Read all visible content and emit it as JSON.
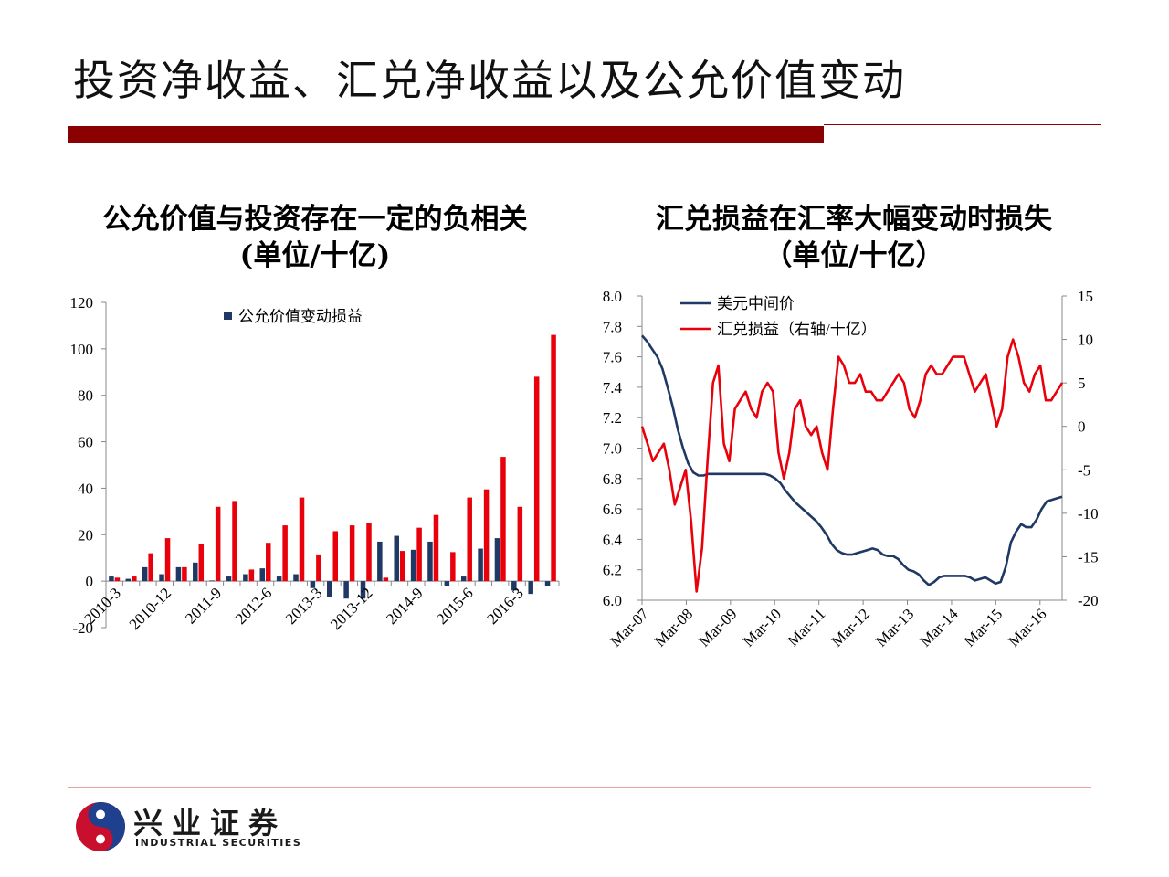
{
  "title": "投资净收益、汇兑净收益以及公允价值变动",
  "left_subtitle": {
    "line1": "公允价值与投资存在一定的负相关",
    "line2": "(单位/十亿)"
  },
  "right_subtitle": {
    "line1": "汇兑损益在汇率大幅变动时损失",
    "line2": "（单位/十亿）"
  },
  "colors": {
    "accent": "#8b0000",
    "navy": "#1f3864",
    "red": "#e8000b"
  },
  "logo": {
    "cn": "兴业证券",
    "en": "INDUSTRIAL SECURITIES"
  },
  "chart_data": [
    {
      "type": "bar",
      "legend": [
        "公允价值变动损益"
      ],
      "ylim": [
        -20,
        120
      ],
      "yticks": [
        -20,
        0,
        20,
        40,
        60,
        80,
        100,
        120
      ],
      "xtick_labels": [
        "2010-3",
        "2010-12",
        "2011-9",
        "2012-6",
        "2013-3",
        "2013-12",
        "2014-9",
        "2015-6",
        "2016-3"
      ],
      "series": [
        {
          "name": "公允价值变动损益",
          "color": "#1f3864",
          "values": [
            2,
            1,
            6,
            3,
            6,
            8,
            0.3,
            2,
            3,
            5.5,
            2,
            3,
            -3,
            -7,
            -7.5,
            -7.5,
            17,
            19.5,
            13.5,
            17,
            -2,
            2,
            14,
            18.5,
            -4,
            -5.5,
            -2
          ]
        },
        {
          "color": "#e8000b",
          "values": [
            1.5,
            2,
            12,
            18.5,
            6,
            16,
            32,
            34.5,
            5,
            16.5,
            24,
            36,
            11.5,
            21.5,
            24,
            25,
            1.5,
            13,
            23,
            28.5,
            12.5,
            36,
            39.5,
            53.5,
            32,
            88,
            106
          ]
        }
      ]
    },
    {
      "type": "line",
      "x_labels": [
        "Mar-07",
        "Mar-08",
        "Mar-09",
        "Mar-10",
        "Mar-11",
        "Mar-12",
        "Mar-13",
        "Mar-14",
        "Mar-15",
        "Mar-16"
      ],
      "y_left": {
        "lim": [
          6.0,
          8.0
        ],
        "ticks": [
          "6.0",
          "6.2",
          "6.4",
          "6.6",
          "6.8",
          "7.0",
          "7.2",
          "7.4",
          "7.6",
          "7.8",
          "8.0"
        ]
      },
      "y_right": {
        "lim": [
          -20,
          15
        ],
        "ticks": [
          "-20",
          "-15",
          "-10",
          "-5",
          "0",
          "5",
          "10",
          "15"
        ]
      },
      "series": [
        {
          "name": "美元中间价",
          "axis": "left",
          "color": "#1f3864",
          "values": [
            7.74,
            7.7,
            7.65,
            7.6,
            7.52,
            7.4,
            7.27,
            7.12,
            7.0,
            6.9,
            6.84,
            6.82,
            6.82,
            6.83,
            6.83,
            6.83,
            6.83,
            6.83,
            6.83,
            6.83,
            6.83,
            6.83,
            6.83,
            6.83,
            6.83,
            6.82,
            6.8,
            6.77,
            6.72,
            6.68,
            6.64,
            6.61,
            6.58,
            6.55,
            6.52,
            6.48,
            6.43,
            6.37,
            6.33,
            6.31,
            6.3,
            6.3,
            6.31,
            6.32,
            6.33,
            6.34,
            6.33,
            6.3,
            6.29,
            6.29,
            6.27,
            6.23,
            6.2,
            6.19,
            6.17,
            6.13,
            6.1,
            6.12,
            6.15,
            6.16,
            6.16,
            6.16,
            6.16,
            6.16,
            6.15,
            6.13,
            6.14,
            6.15,
            6.13,
            6.11,
            6.12,
            6.22,
            6.38,
            6.45,
            6.5,
            6.48,
            6.48,
            6.53,
            6.6,
            6.65,
            6.66,
            6.67,
            6.68
          ]
        },
        {
          "name": "汇兑损益（右轴/十亿）",
          "axis": "right",
          "color": "#e8000b",
          "values": [
            0,
            -2,
            -4,
            -3,
            -2,
            -5,
            -9,
            -7,
            -5,
            -11,
            -19,
            -14,
            -4,
            5,
            7,
            -2,
            -4,
            2,
            3,
            4,
            2,
            1,
            4,
            5,
            4,
            -3,
            -6,
            -3,
            2,
            3,
            0,
            -1,
            0,
            -3,
            -5,
            2,
            8,
            7,
            5,
            5,
            6,
            4,
            4,
            3,
            3,
            4,
            5,
            6,
            5,
            2,
            1,
            3,
            6,
            7,
            6,
            6,
            7,
            8,
            8,
            8,
            6,
            4,
            5,
            6,
            3,
            0,
            2,
            8,
            10,
            8,
            5,
            4,
            6,
            7,
            3,
            3,
            4,
            5
          ]
        }
      ]
    }
  ]
}
